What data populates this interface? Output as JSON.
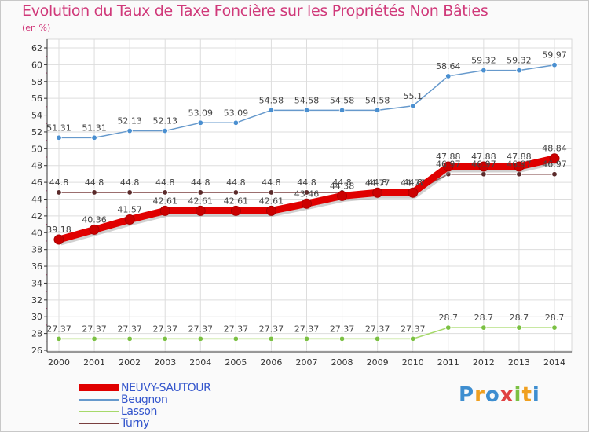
{
  "title": "Evolution du Taux de Taxe Foncière sur les Propriétés Non Bâties",
  "subtitle": "(en %)",
  "colors": {
    "title": "#d0397a",
    "grid": "#dddddd",
    "axis": "#333333"
  },
  "logo": {
    "letters": [
      "P",
      "r",
      "o",
      "x",
      "i",
      "t",
      "i"
    ],
    "colors": [
      "#3e8ed0",
      "#f0a020",
      "#3e8ed0",
      "#e04040",
      "#7bc043",
      "#f0a020",
      "#3e8ed0"
    ]
  },
  "chart_data": {
    "type": "line",
    "title": "Evolution du Taux de Taxe Foncière sur les Propriétés Non Bâties",
    "ylabel": "(en %)",
    "xlabel": "",
    "x": [
      "2000",
      "2001",
      "2002",
      "2003",
      "2004",
      "2005",
      "2006",
      "2007",
      "2008",
      "2009",
      "2010",
      "2011",
      "2012",
      "2013",
      "2014"
    ],
    "ylim": [
      26,
      62
    ],
    "yticks": [
      "26",
      "28",
      "30",
      "32",
      "34",
      "36",
      "38",
      "40",
      "42",
      "44",
      "46",
      "48",
      "50",
      "52",
      "54",
      "56",
      "58",
      "60",
      "62"
    ],
    "grid": true,
    "legend_position": "bottom-left",
    "series": [
      {
        "name": "Beugnon",
        "color": "#6699cc",
        "marker": "#4a8fd0",
        "values": [
          51.31,
          51.31,
          52.13,
          52.13,
          53.09,
          53.09,
          54.58,
          54.58,
          54.58,
          54.58,
          55.1,
          58.64,
          59.32,
          59.32,
          59.97
        ],
        "labels": [
          "51.31",
          "51.31",
          "52.13",
          "52.13",
          "53.09",
          "53.09",
          "54.58",
          "54.58",
          "54.58",
          "54.58",
          "55.1",
          "58.64",
          "59.32",
          "59.32",
          "59.97"
        ]
      },
      {
        "name": "Lasson",
        "color": "#a6d96a",
        "marker": "#7bc043",
        "values": [
          27.37,
          27.37,
          27.37,
          27.37,
          27.37,
          27.37,
          27.37,
          27.37,
          27.37,
          27.37,
          27.37,
          28.7,
          28.7,
          28.7,
          28.7
        ],
        "labels": [
          "27.37",
          "27.37",
          "27.37",
          "27.37",
          "27.37",
          "27.37",
          "27.37",
          "27.37",
          "27.37",
          "27.37",
          "27.37",
          "28.7",
          "28.7",
          "28.7",
          "28.7"
        ]
      },
      {
        "name": "Turny",
        "color": "#7a3e3e",
        "marker": "#5a2a2a",
        "values": [
          44.8,
          44.8,
          44.8,
          44.8,
          44.8,
          44.8,
          44.8,
          44.8,
          44.8,
          44.8,
          44.8,
          46.97,
          46.97,
          46.97,
          46.97
        ],
        "labels": [
          "44.8",
          "44.8",
          "44.8",
          "44.8",
          "44.8",
          "44.8",
          "44.8",
          "44.8",
          "44.8",
          "44.8",
          "44.8",
          "46.97",
          "46.97",
          "46.97",
          "46.97"
        ]
      },
      {
        "name": "NEUVY-SAUTOUR",
        "color": "#e00000",
        "marker": "#cc0000",
        "values": [
          39.18,
          40.36,
          41.57,
          42.61,
          42.61,
          42.61,
          42.61,
          43.46,
          44.38,
          44.77,
          44.77,
          47.88,
          47.88,
          47.88,
          48.84
        ],
        "labels": [
          "39.18",
          "40.36",
          "41.57",
          "42.61",
          "42.61",
          "42.61",
          "42.61",
          "43.46",
          "44.38",
          "44.77",
          "44.77",
          "47.88",
          "47.88",
          "47.88",
          "48.84"
        ]
      }
    ]
  },
  "legend": [
    {
      "label": "NEUVY-SAUTOUR",
      "color": "#e00000",
      "label_color": "#3355cc",
      "thickness": 9
    },
    {
      "label": "Beugnon",
      "color": "#6699cc",
      "label_color": "#3355cc",
      "thickness": 2
    },
    {
      "label": "Lasson",
      "color": "#a6d96a",
      "label_color": "#3355cc",
      "thickness": 2
    },
    {
      "label": "Turny",
      "color": "#7a3e3e",
      "label_color": "#3355cc",
      "thickness": 2
    }
  ]
}
